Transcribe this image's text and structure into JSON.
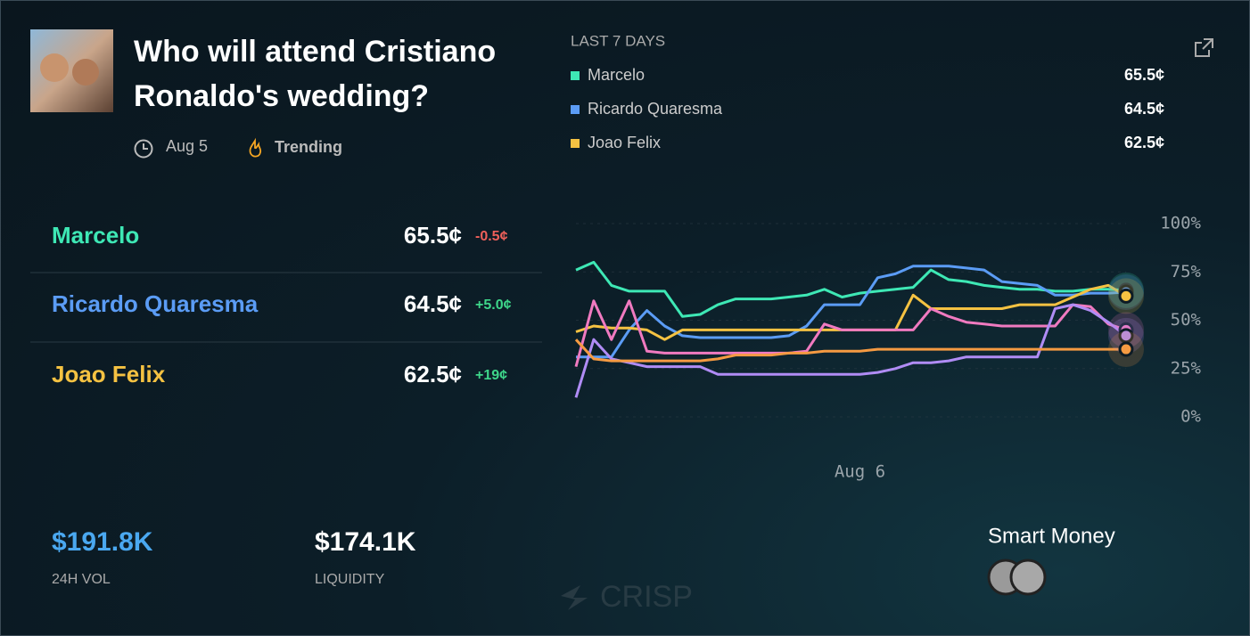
{
  "market": {
    "title": "Who will attend Cristiano Ronaldo's wedding?",
    "date": "Aug 5",
    "tag": "Trending"
  },
  "outcomes": [
    {
      "name": "Marcelo",
      "price": "65.5¢",
      "change": "-0.5¢"
    },
    {
      "name": "Ricardo Quaresma",
      "price": "64.5¢",
      "change": "+5.0¢"
    },
    {
      "name": "Joao Felix",
      "price": "62.5¢",
      "change": "+19¢"
    }
  ],
  "stats": [
    {
      "value": "$191.8K",
      "label": "24H VOL"
    },
    {
      "value": "$174.1K",
      "label": "LIQUIDITY"
    }
  ],
  "watermark": "CRISP",
  "smart_money_label": "Smart Money",
  "legend": {
    "title": "LAST 7 DAYS",
    "prices": [
      "65.5¢",
      "64.5¢",
      "62.5¢"
    ]
  },
  "chart_data": {
    "type": "line",
    "categories": [
      null,
      null,
      null,
      null,
      null,
      null,
      null,
      null,
      null,
      null,
      null,
      null,
      null,
      null,
      null,
      null,
      "Aug 6",
      null,
      null,
      null,
      null,
      null,
      null,
      null,
      null,
      null,
      null,
      null,
      null,
      null,
      null,
      null
    ],
    "series": [
      {
        "name": "Marcelo",
        "color": "#3ee8b5",
        "values": [
          76,
          80,
          68,
          65,
          65,
          65,
          52,
          53,
          58,
          61,
          61,
          61,
          62,
          63,
          66,
          62,
          64,
          65,
          66,
          67,
          76,
          71,
          70,
          68,
          67,
          66,
          66,
          65,
          65,
          66,
          66,
          65.5
        ]
      },
      {
        "name": "Ricardo Quaresma",
        "color": "#5b9cf5",
        "values": [
          31,
          31,
          31,
          45,
          55,
          47,
          42,
          41,
          41,
          41,
          41,
          41,
          42,
          47,
          58,
          58,
          58,
          72,
          74,
          78,
          78,
          78,
          77,
          76,
          70,
          69,
          68,
          63,
          63,
          64,
          64,
          64.5
        ]
      },
      {
        "name": "Joao Felix",
        "color": "#f5c242",
        "values": [
          44,
          47,
          46,
          46,
          45,
          40,
          45,
          45,
          45,
          45,
          45,
          45,
          45,
          45,
          45,
          45,
          45,
          45,
          45,
          63,
          56,
          56,
          56,
          56,
          56,
          58,
          58,
          58,
          62,
          66,
          68,
          62.5
        ]
      },
      {
        "color": "#f07ac0",
        "values": [
          26,
          60,
          40,
          60,
          34,
          33,
          33,
          33,
          33,
          33,
          33,
          33,
          33,
          34,
          48,
          45,
          45,
          45,
          45,
          45,
          56,
          52,
          49,
          48,
          47,
          47,
          47,
          47,
          58,
          57,
          48,
          45
        ]
      },
      {
        "color": "#b08cf5",
        "values": [
          10,
          40,
          30,
          28,
          26,
          26,
          26,
          26,
          22,
          22,
          22,
          22,
          22,
          22,
          22,
          22,
          22,
          23,
          25,
          28,
          28,
          29,
          31,
          31,
          31,
          31,
          31,
          56,
          58,
          55,
          49,
          42
        ]
      },
      {
        "color": "#f59a42",
        "values": [
          40,
          30,
          29,
          29,
          29,
          29,
          29,
          29,
          30,
          32,
          32,
          32,
          33,
          33,
          34,
          34,
          34,
          35,
          35,
          35,
          35,
          35,
          35,
          35,
          35,
          35,
          35,
          35,
          35,
          35,
          35,
          35
        ]
      }
    ],
    "ylim": [
      0,
      100
    ],
    "yticks": [
      {
        "value": 0,
        "label": "0%"
      },
      {
        "value": 25,
        "label": "25%"
      },
      {
        "value": 50,
        "label": "50%"
      },
      {
        "value": 75,
        "label": "75%"
      },
      {
        "value": 100,
        "label": "100%"
      }
    ],
    "grid": true
  }
}
